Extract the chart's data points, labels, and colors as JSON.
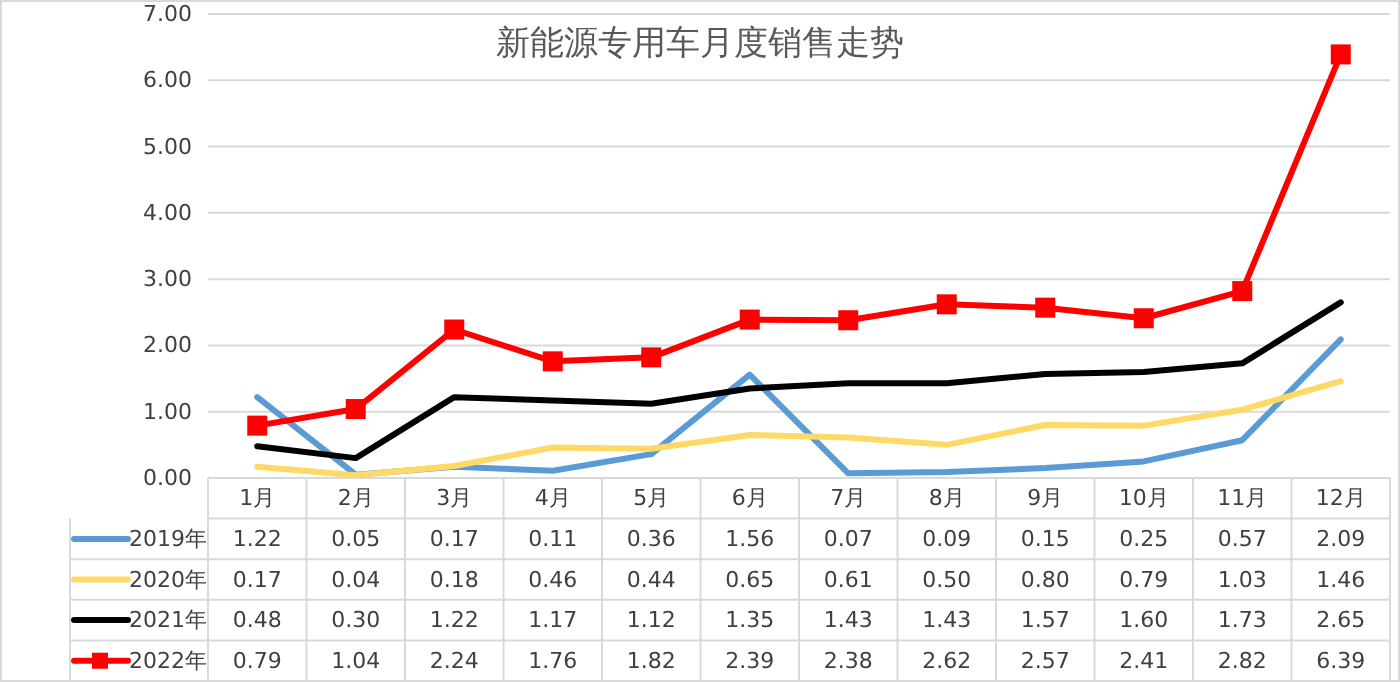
{
  "chart_data": {
    "type": "line",
    "title": "新能源专用车月度销售走势",
    "categories": [
      "1月",
      "2月",
      "3月",
      "4月",
      "5月",
      "6月",
      "7月",
      "8月",
      "9月",
      "10月",
      "11月",
      "12月"
    ],
    "series": [
      {
        "name": "2019年",
        "color": "#5b9bd5",
        "marker": "none",
        "values": [
          1.22,
          0.05,
          0.17,
          0.11,
          0.36,
          1.56,
          0.07,
          0.09,
          0.15,
          0.25,
          0.57,
          2.09
        ],
        "value_labels": [
          "1.22",
          "0.05",
          "0.17",
          "0.11",
          "0.36",
          "1.56",
          "0.07",
          "0.09",
          "0.15",
          "0.25",
          "0.57",
          "2.09"
        ]
      },
      {
        "name": "2020年",
        "color": "#ffd966",
        "marker": "none",
        "values": [
          0.17,
          0.04,
          0.18,
          0.46,
          0.44,
          0.65,
          0.61,
          0.5,
          0.8,
          0.79,
          1.03,
          1.46
        ],
        "value_labels": [
          "0.17",
          "0.04",
          "0.18",
          "0.46",
          "0.44",
          "0.65",
          "0.61",
          "0.50",
          "0.80",
          "0.79",
          "1.03",
          "1.46"
        ]
      },
      {
        "name": "2021年",
        "color": "#000000",
        "marker": "none",
        "values": [
          0.48,
          0.3,
          1.22,
          1.17,
          1.12,
          1.35,
          1.43,
          1.43,
          1.57,
          1.6,
          1.73,
          2.65
        ],
        "value_labels": [
          "0.48",
          "0.30",
          "1.22",
          "1.17",
          "1.12",
          "1.35",
          "1.43",
          "1.43",
          "1.57",
          "1.60",
          "1.73",
          "2.65"
        ]
      },
      {
        "name": "2022年",
        "color": "#ff0000",
        "marker": "square",
        "values": [
          0.79,
          1.04,
          2.24,
          1.76,
          1.82,
          2.39,
          2.38,
          2.62,
          2.57,
          2.41,
          2.82,
          6.39
        ],
        "value_labels": [
          "0.79",
          "1.04",
          "2.24",
          "1.76",
          "1.82",
          "2.39",
          "2.38",
          "2.62",
          "2.57",
          "2.41",
          "2.82",
          "6.39"
        ]
      }
    ],
    "ylim": [
      0,
      7
    ],
    "yticks": [
      {
        "value": 0,
        "label": "0.00"
      },
      {
        "value": 1,
        "label": "1.00"
      },
      {
        "value": 2,
        "label": "2.00"
      },
      {
        "value": 3,
        "label": "3.00"
      },
      {
        "value": 4,
        "label": "4.00"
      },
      {
        "value": 5,
        "label": "5.00"
      },
      {
        "value": 6,
        "label": "6.00"
      },
      {
        "value": 7,
        "label": "7.00"
      }
    ],
    "grid": "y",
    "legend": "bottom"
  }
}
